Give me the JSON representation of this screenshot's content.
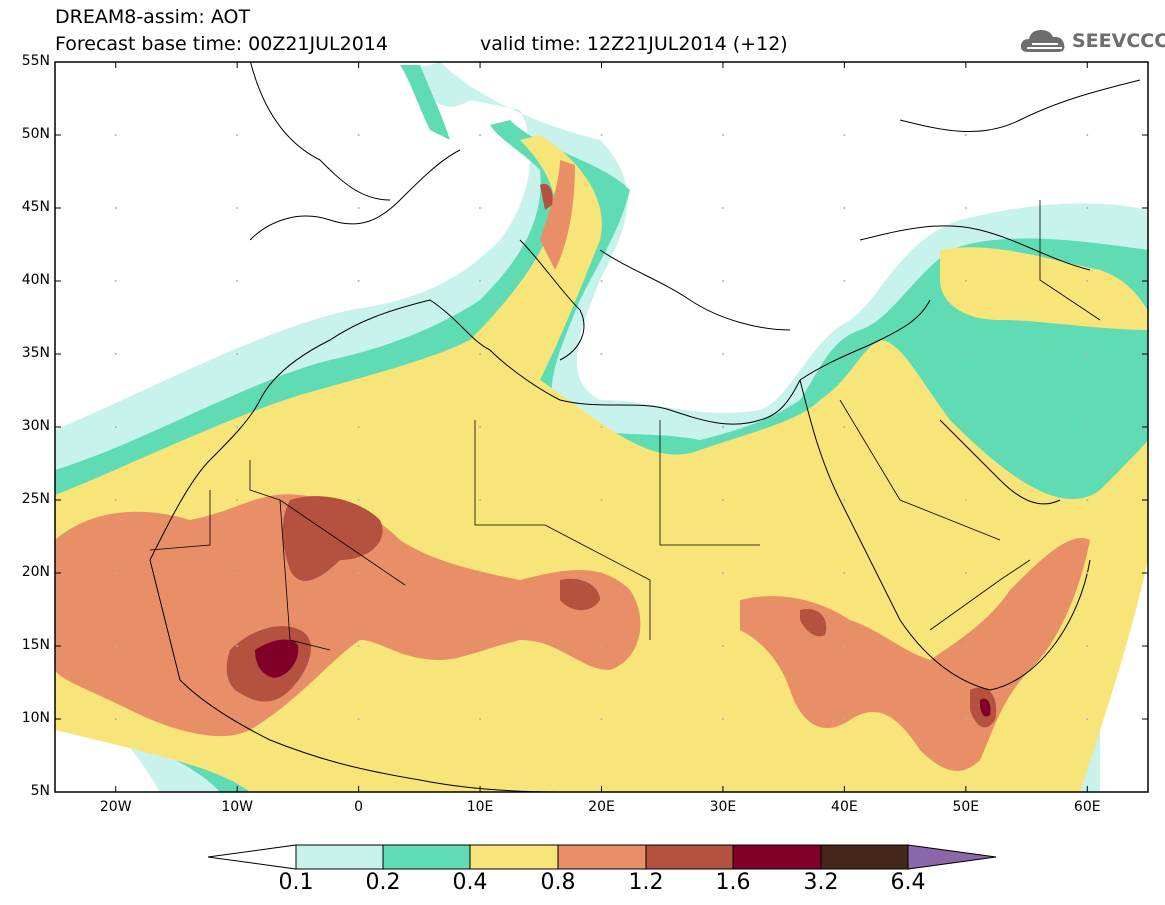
{
  "header": {
    "line1": "DREAM8-assim: AOT",
    "base_time": "Forecast base time: 00Z21JUL2014",
    "valid_time": "valid time: 12Z21JUL2014 (+12)"
  },
  "logo": {
    "text": "SEEVCCC",
    "icon": "cloud-icon"
  },
  "map": {
    "type": "contour-filled aerosol optical thickness map",
    "lat_labels": [
      "55N",
      "50N",
      "45N",
      "40N",
      "35N",
      "30N",
      "25N",
      "20N",
      "15N",
      "10N",
      "5N"
    ],
    "lon_labels": [
      "20W",
      "10W",
      "0",
      "10E",
      "20E",
      "30E",
      "40E",
      "50E",
      "60E"
    ],
    "lat_range": [
      5,
      55
    ],
    "lon_range": [
      -25,
      65
    ]
  },
  "colorbar": {
    "levels": [
      "0.1",
      "0.2",
      "0.4",
      "0.8",
      "1.2",
      "1.6",
      "3.2",
      "6.4"
    ],
    "colors": [
      "#ffffff",
      "#c8f2ec",
      "#5fdcb4",
      "#f8e57a",
      "#e98f68",
      "#b4513f",
      "#80002a",
      "#45271a",
      "#8b66a8"
    ]
  },
  "colors": {
    "c01": "#c8f2ec",
    "c02": "#5fdcb4",
    "c04": "#f8e57a",
    "c08": "#e98f68",
    "c12": "#b4513f",
    "c16": "#80002a"
  }
}
